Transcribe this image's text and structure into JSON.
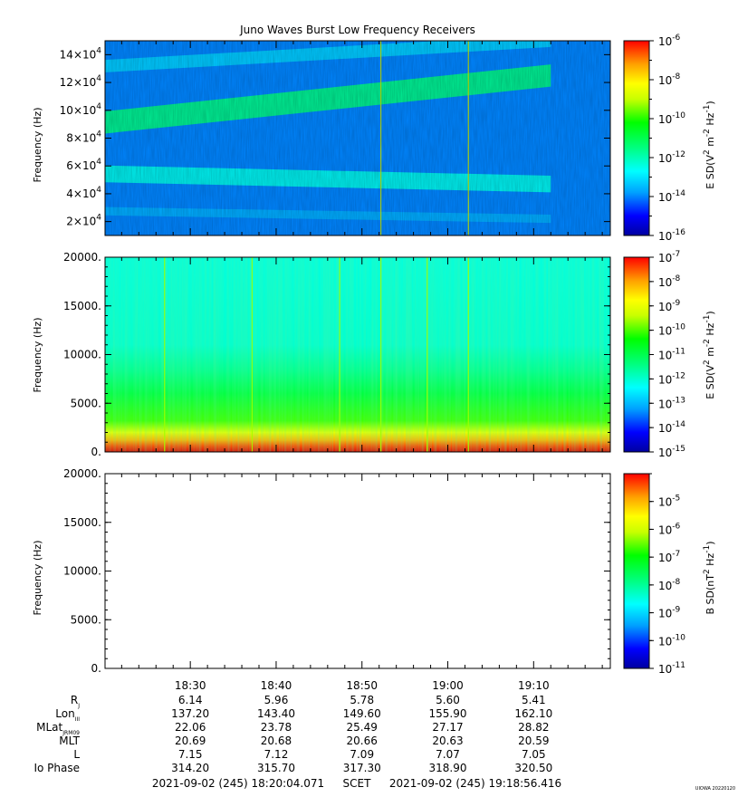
{
  "title": "Juno Waves Burst Low Frequency Receivers",
  "chart_data": [
    {
      "type": "heatmap",
      "name": "upper-spectrogram",
      "ylabel": "Frequency (Hz)",
      "ylim": [
        10000,
        150000
      ],
      "yticks": [
        {
          "value": 20000,
          "mant": "2×10",
          "exp": "4"
        },
        {
          "value": 40000,
          "mant": "4×10",
          "exp": "4"
        },
        {
          "value": 60000,
          "mant": "6×10",
          "exp": "4"
        },
        {
          "value": 80000,
          "mant": "8×10",
          "exp": "4"
        },
        {
          "value": 100000,
          "mant": "10×10",
          "exp": "4"
        },
        {
          "value": 120000,
          "mant": "12×10",
          "exp": "4"
        },
        {
          "value": 140000,
          "mant": "14×10",
          "exp": "4"
        }
      ],
      "colorbar": {
        "label": "E SD(V² m⁻² Hz⁻¹)",
        "label_main": "E SD(V",
        "label_parts": [
          "2",
          " m",
          "-2",
          " Hz",
          "-1",
          ")"
        ],
        "log_range": [
          -16,
          -6
        ],
        "ticks": [
          -16,
          -14,
          -12,
          -10,
          -8,
          -6
        ]
      },
      "bands": [
        {
          "from": [
            18.25,
            88000
          ],
          "to": [
            19.2,
            125000
          ],
          "width": 16000,
          "level": -11.5
        },
        {
          "from": [
            18.25,
            130000
          ],
          "to": [
            19.2,
            150000
          ],
          "width": 9000,
          "level": -13.2
        },
        {
          "from": [
            18.25,
            55000
          ],
          "to": [
            19.2,
            47000
          ],
          "width": 12000,
          "level": -12.5
        },
        {
          "from": [
            18.25,
            28000
          ],
          "to": [
            19.2,
            22000
          ],
          "width": 6000,
          "level": -13.6
        }
      ],
      "spikes": [
        18.87,
        19.04
      ],
      "background_level": -14.0
    },
    {
      "type": "heatmap",
      "name": "middle-spectrogram",
      "ylabel": "Frequency (Hz)",
      "ylim": [
        0,
        20000
      ],
      "yticks": [
        {
          "value": 0,
          "label": "0."
        },
        {
          "value": 5000,
          "label": "5000."
        },
        {
          "value": 10000,
          "label": "10000."
        },
        {
          "value": 15000,
          "label": "15000."
        },
        {
          "value": 20000,
          "label": "20000."
        }
      ],
      "colorbar": {
        "label": "E SD(V² m⁻² Hz⁻¹)",
        "label_main": "E SD(V",
        "label_parts": [
          "2",
          " m",
          "-2",
          " Hz",
          "-1",
          ")"
        ],
        "log_range": [
          -15,
          -7
        ],
        "ticks": [
          -15,
          -14,
          -13,
          -12,
          -11,
          -10,
          -9,
          -8,
          -7
        ]
      },
      "spikes": [
        18.45,
        18.62,
        18.79,
        18.87,
        18.96,
        19.04
      ],
      "background_level": -12.5
    },
    {
      "type": "heatmap",
      "name": "lower-spectrogram",
      "ylabel": "Frequency (Hz)",
      "ylim": [
        0,
        20000
      ],
      "yticks": [
        {
          "value": 0,
          "label": "0."
        },
        {
          "value": 5000,
          "label": "5000."
        },
        {
          "value": 10000,
          "label": "10000."
        },
        {
          "value": 15000,
          "label": "15000."
        },
        {
          "value": 20000,
          "label": "20000."
        }
      ],
      "colorbar": {
        "label": "B SD(nT² Hz⁻¹)",
        "label_main": "B SD(nT",
        "label_parts": [
          "2",
          " Hz",
          "-1",
          ")"
        ],
        "log_range": [
          -11,
          -4
        ],
        "ticks": [
          -11,
          -10,
          -9,
          -8,
          -7,
          -6,
          -5
        ]
      },
      "empty": true
    }
  ],
  "time_axis": {
    "range_hours": [
      18.3344,
      19.3156
    ],
    "major": [
      {
        "t": 18.5,
        "label": "18:30"
      },
      {
        "t": 18.6667,
        "label": "18:40"
      },
      {
        "t": 18.8333,
        "label": "18:50"
      },
      {
        "t": 19.0,
        "label": "19:00"
      },
      {
        "t": 19.1667,
        "label": "19:10"
      }
    ]
  },
  "ephemeris": [
    {
      "label": "R",
      "sub": "J",
      "values": [
        "6.14",
        "5.96",
        "5.78",
        "5.60",
        "5.41"
      ]
    },
    {
      "label": "Lon",
      "sub": "III",
      "values": [
        "137.20",
        "143.40",
        "149.60",
        "155.90",
        "162.10"
      ]
    },
    {
      "label": "MLat",
      "sub": "JRM09",
      "values": [
        "22.06",
        "23.78",
        "25.49",
        "27.17",
        "28.82"
      ]
    },
    {
      "label": "MLT",
      "sub": "",
      "values": [
        "20.69",
        "20.68",
        "20.66",
        "20.63",
        "20.59"
      ]
    },
    {
      "label": "L",
      "sub": "",
      "values": [
        "7.15",
        "7.12",
        "7.09",
        "7.07",
        "7.05"
      ]
    },
    {
      "label": "Io Phase",
      "sub": "",
      "values": [
        "314.20",
        "315.70",
        "317.30",
        "318.90",
        "320.50"
      ]
    }
  ],
  "footer": {
    "start": "2021-09-02 (245) 18:20:04.071",
    "scet": "SCET",
    "end": "2021-09-02 (245) 19:18:56.416",
    "credit": "UIOWA 20220120"
  }
}
